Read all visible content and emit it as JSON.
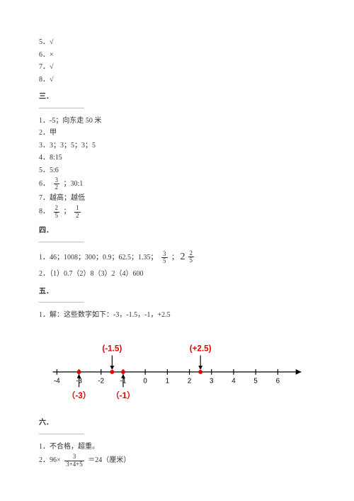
{
  "topList": {
    "i5": "5．√",
    "i6": "6．×",
    "i7": "7．√",
    "i8": "8．√"
  },
  "sec3": {
    "header": "三．",
    "l1": "1．-5；向东走 50 米",
    "l2": "2．甲",
    "l3": "3．3；3；5；3；5",
    "l4": "4．8:15",
    "l5": "5．5:6",
    "l6a": "6．",
    "l6_frac_num": "3",
    "l6_frac_den": "2",
    "l6b": "；30:1",
    "l7": "7．越高；越低",
    "l8a": "8．",
    "l8f1n": "2",
    "l8f1d": "5",
    "l8_sep": "；",
    "l8f2n": "1",
    "l8f2d": "2"
  },
  "sec4": {
    "header": "四．",
    "l1a": "1．46；1008；300；0.9；62.5；1.35；",
    "l1_f1n": "3",
    "l1_f1d": "5",
    "l1_sep": "；",
    "l1_mixed_whole": "2",
    "l1_mixed_num": "2",
    "l1_mixed_den": "5",
    "l2": "2．（1）0.7（2）8（3）2（4）600"
  },
  "sec5": {
    "header": "五．",
    "l1": "1．解：这些数字如下：-3，-1.5，-1，+2.5",
    "numberLine": {
      "axisY": 60,
      "xStart": 20,
      "xEnd": 380,
      "tickStart": -4,
      "tickEnd": 6,
      "tickSpacing": 32,
      "originX": 154,
      "labels": [
        "-4",
        "-3",
        "-2",
        "-1",
        "0",
        "1",
        "2",
        "3",
        "4",
        "5",
        "6"
      ],
      "points": [
        {
          "v": -3,
          "label": "（-3）",
          "labelPos": "below"
        },
        {
          "v": -1.5,
          "label": "(-1.5)",
          "labelPos": "above"
        },
        {
          "v": -1,
          "label": "（-1）",
          "labelPos": "below"
        },
        {
          "v": 2.5,
          "label": "(+2.5)",
          "labelPos": "above"
        }
      ],
      "colors": {
        "point": "#e60000",
        "axis": "#000000"
      }
    }
  },
  "sec6": {
    "header": "六．",
    "l1": "1．不合格，超重。",
    "l2a": "2．96×",
    "l2_num": "3",
    "l2_den": "3+4+5",
    "l2b": "＝24（厘米）"
  }
}
